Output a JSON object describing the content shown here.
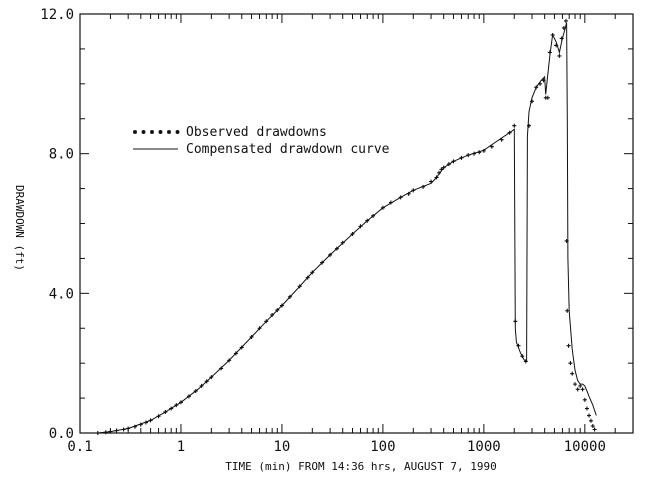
{
  "chart_data": {
    "type": "scatter",
    "xlabel": "TIME (min) FROM 14:36 hrs, AUGUST 7, 1990",
    "ylabel": "DRAWDOWN (ft)",
    "xscale": "log",
    "xlim": [
      0.1,
      30000
    ],
    "ylim": [
      0,
      12
    ],
    "x_tick_labels": [
      "0.1",
      "1",
      "10",
      "100",
      "1000",
      "10000"
    ],
    "x_tick_values": [
      0.1,
      1,
      10,
      100,
      1000,
      10000
    ],
    "y_tick_labels": [
      "0.0",
      "4.0",
      "8.0",
      "12.0"
    ],
    "y_tick_values": [
      0,
      4,
      8,
      12
    ],
    "grid": false,
    "legend": {
      "position": "upper-left",
      "entries": [
        {
          "label": "Observed drawdowns",
          "style": "markers"
        },
        {
          "label": "Compensated drawdown curve",
          "style": "line"
        }
      ]
    },
    "series": [
      {
        "name": "Observed drawdowns",
        "style": "markers",
        "x": [
          0.15,
          0.18,
          0.2,
          0.23,
          0.27,
          0.3,
          0.35,
          0.4,
          0.45,
          0.5,
          0.6,
          0.7,
          0.8,
          0.9,
          1.0,
          1.2,
          1.4,
          1.6,
          1.8,
          2.0,
          2.5,
          3.0,
          3.5,
          4.0,
          5.0,
          6.0,
          7.0,
          8.0,
          9.0,
          10,
          12,
          15,
          18,
          20,
          25,
          30,
          35,
          40,
          50,
          60,
          70,
          80,
          100,
          120,
          150,
          180,
          200,
          250,
          300,
          340,
          360,
          380,
          400,
          450,
          500,
          600,
          700,
          800,
          900,
          1000,
          1200,
          1500,
          1800,
          2000,
          2050,
          2200,
          2400,
          2600,
          2800,
          3000,
          3300,
          3600,
          3900,
          4100,
          4300,
          4500,
          4800,
          5200,
          5600,
          5900,
          6200,
          6500,
          6600,
          6700,
          6900,
          7200,
          7500,
          8000,
          8500,
          9000,
          9500,
          10000,
          10500,
          11000,
          11500,
          12000,
          12500
        ],
        "y": [
          0.0,
          0.02,
          0.04,
          0.07,
          0.1,
          0.13,
          0.18,
          0.24,
          0.3,
          0.36,
          0.48,
          0.6,
          0.7,
          0.8,
          0.88,
          1.05,
          1.2,
          1.35,
          1.48,
          1.6,
          1.85,
          2.08,
          2.28,
          2.45,
          2.75,
          3.0,
          3.2,
          3.38,
          3.52,
          3.65,
          3.9,
          4.2,
          4.45,
          4.6,
          4.88,
          5.1,
          5.28,
          5.45,
          5.7,
          5.92,
          6.08,
          6.22,
          6.45,
          6.6,
          6.75,
          6.85,
          6.95,
          7.05,
          7.2,
          7.32,
          7.45,
          7.55,
          7.6,
          7.7,
          7.78,
          7.88,
          7.96,
          8.0,
          8.04,
          8.08,
          8.2,
          8.4,
          8.6,
          8.8,
          3.2,
          2.5,
          2.2,
          2.05,
          8.8,
          9.5,
          9.9,
          10.0,
          10.1,
          9.6,
          9.6,
          10.9,
          11.4,
          11.1,
          10.8,
          11.3,
          11.6,
          11.8,
          5.5,
          3.5,
          2.5,
          2.0,
          1.7,
          1.4,
          1.25,
          1.35,
          1.25,
          0.95,
          0.7,
          0.5,
          0.35,
          0.2,
          0.1
        ]
      },
      {
        "name": "Compensated drawdown curve",
        "style": "line",
        "x": [
          0.15,
          0.2,
          0.3,
          0.5,
          0.7,
          1.0,
          1.5,
          2.0,
          3.0,
          5.0,
          7.0,
          10,
          15,
          20,
          30,
          50,
          70,
          100,
          150,
          200,
          300,
          340,
          400,
          500,
          700,
          1000,
          1500,
          1900,
          2000,
          2050,
          2100,
          2300,
          2500,
          2650,
          2700,
          2800,
          3000,
          3300,
          3700,
          4000,
          4100,
          4500,
          4800,
          5200,
          5600,
          6000,
          6400,
          6600,
          6700,
          6800,
          7000,
          7500,
          8000,
          8500,
          9000,
          9500,
          10000,
          10500,
          11000,
          12000,
          13000
        ],
        "y": [
          0.0,
          0.04,
          0.13,
          0.36,
          0.6,
          0.88,
          1.27,
          1.6,
          2.08,
          2.75,
          3.2,
          3.65,
          4.2,
          4.6,
          5.1,
          5.7,
          6.08,
          6.45,
          6.75,
          6.95,
          7.15,
          7.32,
          7.6,
          7.78,
          7.96,
          8.1,
          8.45,
          8.65,
          8.7,
          3.0,
          2.6,
          2.3,
          2.1,
          2.05,
          8.5,
          9.2,
          9.6,
          9.9,
          10.1,
          10.2,
          9.7,
          10.8,
          11.4,
          11.2,
          10.9,
          11.3,
          11.6,
          11.75,
          9.0,
          5.0,
          3.5,
          2.4,
          1.8,
          1.5,
          1.4,
          1.4,
          1.35,
          1.2,
          1.05,
          0.8,
          0.5
        ]
      }
    ]
  }
}
